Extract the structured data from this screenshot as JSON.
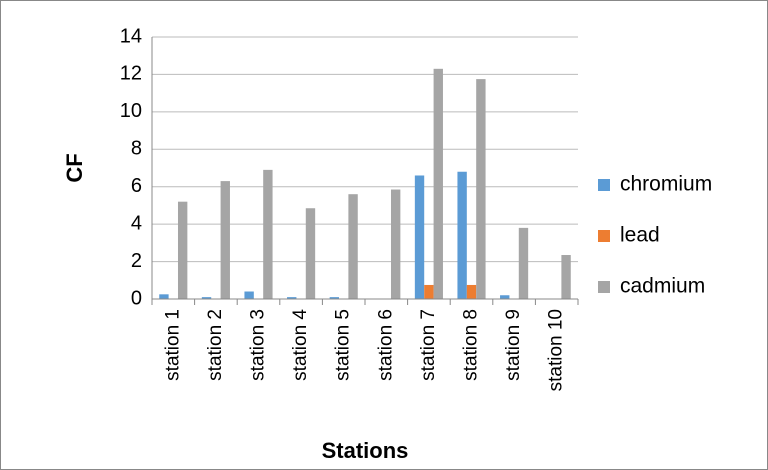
{
  "chart_data": {
    "type": "bar",
    "x_label": "Stations",
    "y_label": "CF",
    "categories": [
      "station 1",
      "station 2",
      "station 3",
      "station 4",
      "station 5",
      "station 6",
      "station 7",
      "station 8",
      "station 9",
      "station 10"
    ],
    "series": [
      {
        "name": "chromium",
        "color": "#5b9bd5",
        "values": [
          0.25,
          0.1,
          0.4,
          0.1,
          0.1,
          0,
          6.6,
          6.8,
          0.2,
          0
        ]
      },
      {
        "name": "lead",
        "color": "#ed7d31",
        "values": [
          0,
          0,
          0,
          0,
          0,
          0,
          0.75,
          0.75,
          0,
          0
        ]
      },
      {
        "name": "cadmium",
        "color": "#a5a5a5",
        "values": [
          5.2,
          6.3,
          6.9,
          4.85,
          5.6,
          5.85,
          12.3,
          11.75,
          3.8,
          2.35
        ]
      }
    ],
    "ylim": [
      0,
      14
    ],
    "yticks": [
      0,
      2,
      4,
      6,
      8,
      10,
      12,
      14
    ],
    "grid": true,
    "legend": "right"
  }
}
